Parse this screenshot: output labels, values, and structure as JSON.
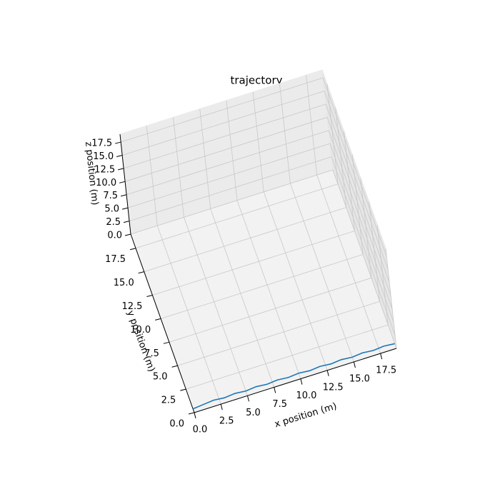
{
  "chart_data": {
    "type": "line3d",
    "title": "trajectory",
    "xlabel": "x position (m)",
    "ylabel": "y position (m)",
    "zlabel": "z position (m)",
    "x": [
      0,
      1,
      2,
      3,
      4,
      5,
      6,
      7,
      8,
      9,
      10,
      11,
      12,
      13,
      14,
      15,
      16,
      17,
      18,
      19
    ],
    "y": [
      0.4,
      0.5,
      0.6,
      0.5,
      0.6,
      0.5,
      0.6,
      0.5,
      0.6,
      0.5,
      0.6,
      0.5,
      0.6,
      0.5,
      0.6,
      0.5,
      0.6,
      0.5,
      0.6,
      0.5
    ],
    "z": [
      0,
      0,
      0,
      0,
      0,
      0,
      0,
      0,
      0,
      0,
      0,
      0,
      0,
      0,
      0,
      0,
      0,
      0,
      0,
      0
    ],
    "color": "#1f77b4",
    "xlim": [
      0,
      19
    ],
    "ylim": [
      0,
      19
    ],
    "zlim": [
      0,
      19
    ],
    "xticks": [
      {
        "value": 0,
        "label": "0.0"
      },
      2.5,
      {
        "value": 5,
        "label": "5.0"
      },
      7.5,
      {
        "value": 10,
        "label": "10.0"
      },
      12.5,
      {
        "value": 15,
        "label": "15.0"
      },
      17.5
    ],
    "yticks": [
      {
        "value": 0,
        "label": "0.0"
      },
      2.5,
      {
        "value": 5,
        "label": "5.0"
      },
      7.5,
      {
        "value": 10,
        "label": "10.0"
      },
      12.5,
      {
        "value": 15,
        "label": "15.0"
      },
      17.5
    ],
    "zticks": [
      {
        "value": 0,
        "label": "0.0"
      },
      2.5,
      {
        "value": 5,
        "label": "5.0"
      },
      7.5,
      {
        "value": 10,
        "label": "10.0"
      },
      12.5,
      {
        "value": 15,
        "label": "15.0"
      },
      17.5
    ],
    "grid": true
  }
}
